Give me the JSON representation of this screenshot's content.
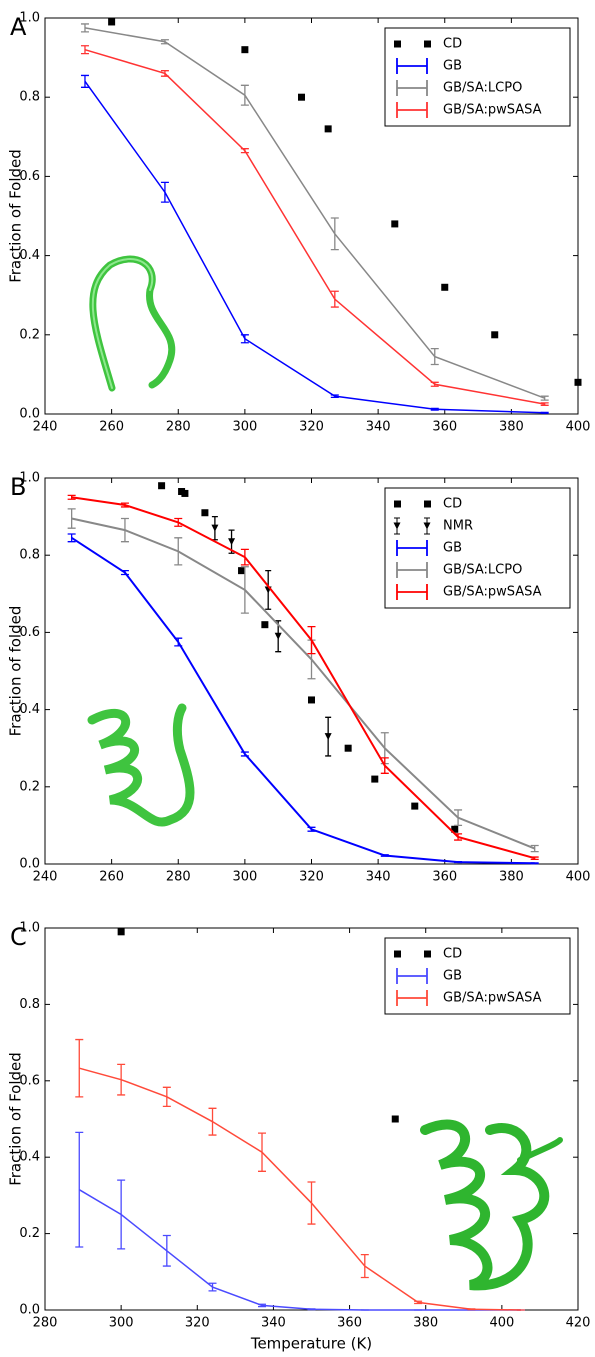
{
  "chart_data": [
    {
      "type": "line",
      "label": "A",
      "ylabel": "Fraction of Folded",
      "xlim": [
        240,
        400
      ],
      "xticks": [
        240,
        260,
        280,
        300,
        320,
        340,
        360,
        380,
        400
      ],
      "ylim": [
        0,
        1
      ],
      "yticks": [
        {
          "value": 0,
          "label": "0.0"
        },
        0.2,
        0.4,
        0.6,
        0.8,
        {
          "value": 1,
          "label": "1.0"
        }
      ],
      "legend": "upper right",
      "series": [
        {
          "name": "CD",
          "color": "#000000",
          "marker": "square",
          "x": [
            260,
            300,
            317,
            325,
            345,
            360,
            375,
            400
          ],
          "values": [
            0.99,
            0.92,
            0.8,
            0.72,
            0.48,
            0.32,
            0.2,
            0.08
          ]
        },
        {
          "name": "GB",
          "color": "#0000ff",
          "marker": "line",
          "x": [
            252,
            276,
            300,
            327,
            357,
            390
          ],
          "values": [
            0.84,
            0.56,
            0.19,
            0.045,
            0.012,
            0.003
          ],
          "errors": [
            0.015,
            0.025,
            0.01,
            0.003,
            0.002,
            0.001
          ]
        },
        {
          "name": "GB/SA:LCPO",
          "color": "#888888",
          "marker": "line",
          "x": [
            252,
            276,
            300,
            327,
            357,
            390
          ],
          "values": [
            0.975,
            0.94,
            0.805,
            0.455,
            0.145,
            0.04
          ],
          "errors": [
            0.01,
            0.005,
            0.025,
            0.04,
            0.02,
            0.005
          ]
        },
        {
          "name": "GB/SA:pwSASA",
          "color": "#ff3333",
          "marker": "line",
          "x": [
            252,
            276,
            300,
            327,
            357,
            390
          ],
          "values": [
            0.92,
            0.86,
            0.665,
            0.29,
            0.075,
            0.025
          ],
          "errors": [
            0.01,
            0.007,
            0.005,
            0.02,
            0.005,
            0.003
          ]
        }
      ]
    },
    {
      "type": "line",
      "label": "B",
      "ylabel": "Fraction of folded",
      "xlim": [
        240,
        400
      ],
      "xticks": [
        240,
        260,
        280,
        300,
        320,
        340,
        360,
        380,
        400
      ],
      "ylim": [
        0,
        1
      ],
      "yticks": [
        {
          "value": 0,
          "label": "0.0"
        },
        0.2,
        0.4,
        0.6,
        0.8,
        {
          "value": 1,
          "label": "1.0"
        }
      ],
      "legend": "upper right",
      "series": [
        {
          "name": "CD",
          "color": "#000000",
          "marker": "square",
          "x": [
            275,
            281,
            282,
            288,
            299,
            306,
            320,
            331,
            339,
            351,
            363
          ],
          "values": [
            0.98,
            0.965,
            0.96,
            0.91,
            0.76,
            0.62,
            0.425,
            0.3,
            0.22,
            0.15,
            0.09
          ]
        },
        {
          "name": "NMR",
          "color": "#000000",
          "marker": "triangle",
          "x": [
            291,
            296,
            307,
            310,
            325
          ],
          "values": [
            0.87,
            0.835,
            0.71,
            0.59,
            0.33
          ],
          "errors": [
            0.03,
            0.03,
            0.05,
            0.04,
            0.05
          ]
        },
        {
          "name": "GB",
          "color": "#0000ff",
          "marker": "line",
          "x": [
            248,
            264,
            280,
            300,
            320,
            342,
            364,
            387
          ],
          "values": [
            0.845,
            0.755,
            0.575,
            0.285,
            0.09,
            0.022,
            0.005,
            0.002
          ],
          "errors": [
            0.01,
            0.005,
            0.01,
            0.005,
            0.005,
            0.002,
            0.001,
            0.001
          ]
        },
        {
          "name": "GB/SA:LCPO",
          "color": "#888888",
          "marker": "line",
          "x": [
            248,
            264,
            280,
            300,
            320,
            342,
            364,
            387
          ],
          "values": [
            0.895,
            0.865,
            0.81,
            0.71,
            0.53,
            0.3,
            0.12,
            0.04
          ],
          "errors": [
            0.025,
            0.03,
            0.035,
            0.06,
            0.05,
            0.04,
            0.02,
            0.008
          ]
        },
        {
          "name": "GB/SA:pwSASA",
          "color": "#ff0000",
          "marker": "line",
          "x": [
            248,
            264,
            280,
            300,
            320,
            342,
            364,
            387
          ],
          "values": [
            0.95,
            0.93,
            0.885,
            0.795,
            0.58,
            0.255,
            0.07,
            0.015
          ],
          "errors": [
            0.005,
            0.005,
            0.01,
            0.02,
            0.035,
            0.02,
            0.008,
            0.003
          ]
        }
      ]
    },
    {
      "type": "line",
      "label": "C",
      "ylabel": "Fraction of Folded",
      "xlabel": "Temperature (K)",
      "xlim": [
        280,
        420
      ],
      "xticks": [
        280,
        300,
        320,
        340,
        360,
        380,
        400,
        420
      ],
      "ylim": [
        0,
        1
      ],
      "yticks": [
        {
          "value": 0,
          "label": "0.0"
        },
        0.2,
        0.4,
        0.6,
        0.8,
        {
          "value": 1,
          "label": "1.0"
        }
      ],
      "legend": "upper right",
      "series": [
        {
          "name": "CD",
          "color": "#000000",
          "marker": "square",
          "x": [
            300,
            372
          ],
          "values": [
            0.99,
            0.5
          ]
        },
        {
          "name": "GB",
          "color": "#4a4aff",
          "marker": "line",
          "x": [
            289,
            300,
            312,
            324,
            337,
            350,
            364,
            378,
            392,
            405
          ],
          "values": [
            0.315,
            0.25,
            0.155,
            0.06,
            0.012,
            0.002,
            0,
            0,
            0,
            0
          ],
          "errors": [
            0.15,
            0.09,
            0.04,
            0.01,
            0.003,
            0.001,
            0,
            0,
            0,
            0
          ]
        },
        {
          "name": "GB/SA:pwSASA",
          "color": "#ff4a3a",
          "marker": "line",
          "x": [
            289,
            300,
            312,
            324,
            337,
            350,
            364,
            378,
            392,
            405
          ],
          "values": [
            0.633,
            0.603,
            0.558,
            0.493,
            0.413,
            0.28,
            0.115,
            0.02,
            0.002,
            0
          ],
          "errors": [
            0.075,
            0.04,
            0.025,
            0.035,
            0.05,
            0.055,
            0.03,
            0.003,
            0.001,
            0
          ]
        }
      ]
    }
  ]
}
